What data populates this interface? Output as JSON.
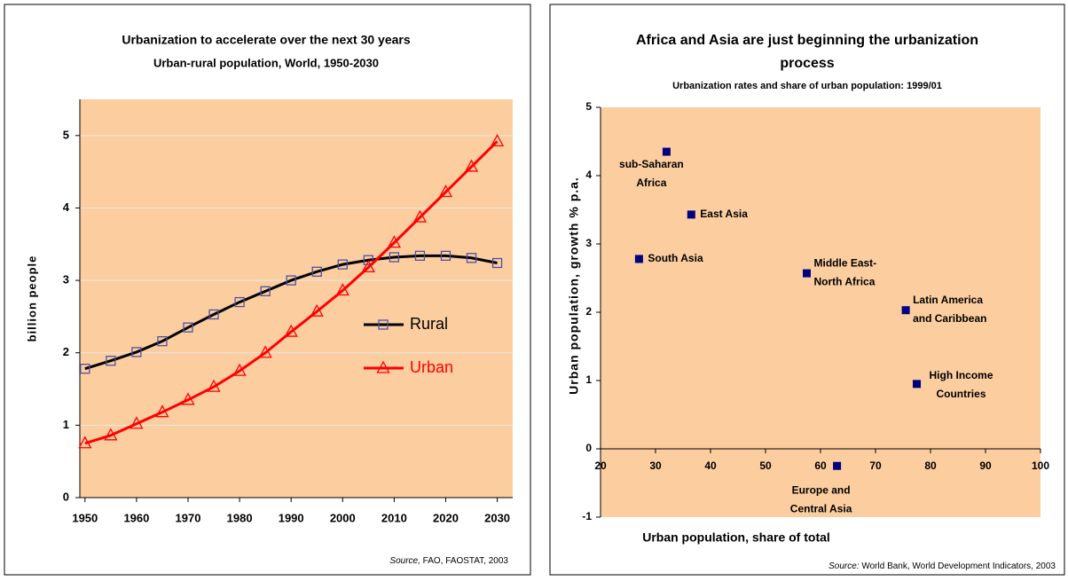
{
  "chart_data": [
    {
      "type": "line",
      "title": "Urbanization to accelerate over the next 30 years",
      "subtitle": "Urban-rural population, World, 1950-2030",
      "y_label": "billion people",
      "source_label": "Source,",
      "source": "FAO, FAOSTAT, 2003",
      "x": [
        1950,
        1955,
        1960,
        1965,
        1970,
        1975,
        1980,
        1985,
        1990,
        1995,
        2000,
        2005,
        2010,
        2015,
        2020,
        2025,
        2030
      ],
      "series": [
        {
          "name": "Rural",
          "color": "#000000",
          "marker": "square",
          "marker_color": "#5050a0",
          "values": [
            1.78,
            1.89,
            2.01,
            2.16,
            2.35,
            2.53,
            2.7,
            2.85,
            3.0,
            3.12,
            3.22,
            3.28,
            3.32,
            3.34,
            3.34,
            3.31,
            3.24
          ]
        },
        {
          "name": "Urban",
          "color": "#ff0000",
          "marker": "triangle",
          "marker_color": "#ff0000",
          "values": [
            0.75,
            0.86,
            1.02,
            1.18,
            1.35,
            1.53,
            1.75,
            2.0,
            2.29,
            2.57,
            2.86,
            3.18,
            3.52,
            3.87,
            4.22,
            4.57,
            4.92
          ]
        }
      ],
      "xlim": [
        1949,
        2033
      ],
      "xticks": [
        1950,
        1960,
        1970,
        1980,
        1990,
        2000,
        2010,
        2020,
        2030
      ],
      "ylim": [
        0,
        5.5
      ],
      "yticks": [
        0,
        1,
        2,
        3,
        4,
        5
      ],
      "grid": true
    },
    {
      "type": "scatter",
      "title": [
        "Africa and Asia are just beginning the urbanization",
        "process"
      ],
      "subtitle": "Urbanization rates and share of urban population: 1999/01",
      "x_label": "Urban population, share of total",
      "y_label": "Urban population, growth % p.a.",
      "source_label": "Source:",
      "source": "World Bank, World Development Indicators, 2003",
      "color": "#000080",
      "labels": [
        [
          "sub-Saharan",
          "Africa"
        ],
        [
          "East Asia"
        ],
        [
          "South Asia"
        ],
        [
          "Middle East-",
          "North Africa"
        ],
        [
          "Latin America",
          "and Caribbean"
        ],
        [
          "High Income",
          "Countries"
        ],
        [
          "Europe and",
          "Central Asia"
        ]
      ],
      "x": [
        32,
        36.5,
        27,
        57.5,
        75.5,
        77.5,
        63
      ],
      "values": [
        4.35,
        3.43,
        2.78,
        2.57,
        2.03,
        0.95,
        -0.25
      ],
      "xlim": [
        20,
        100
      ],
      "xticks": [
        20,
        30,
        40,
        50,
        60,
        70,
        80,
        90,
        100
      ],
      "ylim": [
        -1,
        5
      ],
      "yticks": [
        -1,
        0,
        1,
        2,
        3,
        4,
        5
      ],
      "grid": false
    }
  ]
}
